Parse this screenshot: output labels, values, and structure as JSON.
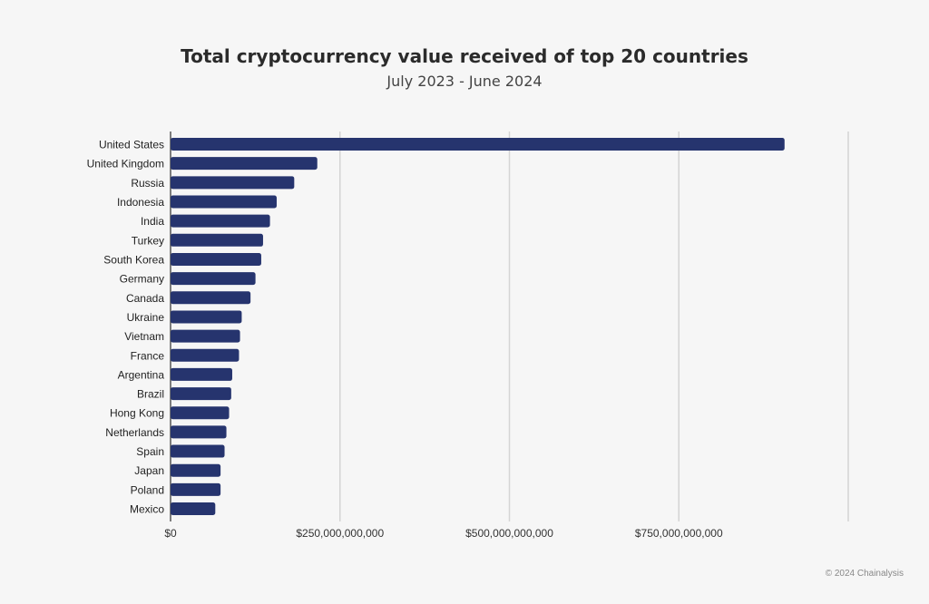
{
  "chart_data": {
    "type": "bar",
    "orientation": "horizontal",
    "title": "Total cryptocurrency value received of top 20 countries",
    "subtitle": "July 2023 - June 2024",
    "xlabel": "",
    "ylabel": "",
    "categories": [
      "United States",
      "United Kingdom",
      "Russia",
      "Indonesia",
      "India",
      "Turkey",
      "South Korea",
      "Germany",
      "Canada",
      "Ukraine",
      "Vietnam",
      "France",
      "Argentina",
      "Brazil",
      "Hong Kong",
      "Netherlands",
      "Spain",
      "Japan",
      "Poland",
      "Mexico"
    ],
    "values": [
      906000000000,
      216500000000,
      182500000000,
      156600000000,
      146700000000,
      136500000000,
      133800000000,
      125300000000,
      118000000000,
      105000000000,
      102500000000,
      101000000000,
      91000000000,
      89500000000,
      86400000000,
      82400000000,
      79700000000,
      73800000000,
      73800000000,
      66000000000
    ],
    "xlim": [
      0,
      1000000000000
    ],
    "xticks": [
      0,
      250000000000,
      500000000000,
      750000000000
    ],
    "xtick_labels": [
      "$0",
      "$250,000,000,000",
      "$500,000,000,000",
      "$750,000,000,000"
    ],
    "grid": true,
    "bar_color": "#26346e"
  },
  "credit": "© 2024 Chainalysis"
}
